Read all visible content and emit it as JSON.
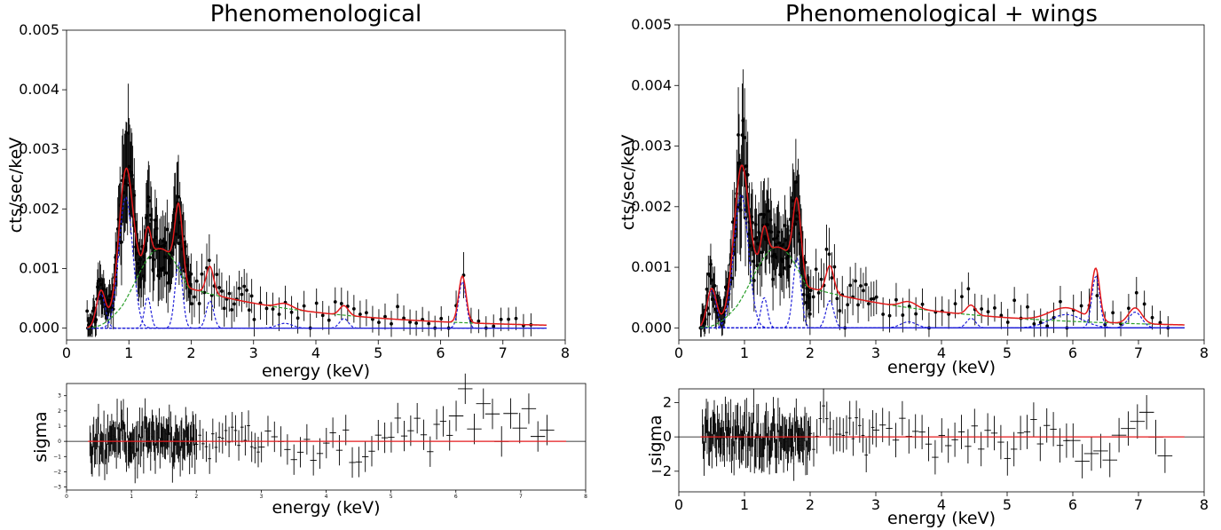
{
  "chart_data": [
    {
      "type": "line",
      "title": "Phenomenological",
      "xlabel": "energy (keV)",
      "ylabel": "cts/sec/keV",
      "xlim": [
        0,
        8
      ],
      "ylim": [
        -0.0002,
        0.005
      ],
      "xticks": [
        0,
        1,
        2,
        3,
        4,
        5,
        6,
        7,
        8
      ],
      "xtick_labels": [
        "0",
        "1",
        "2",
        "3",
        "4",
        "5",
        "6",
        "7",
        "8"
      ],
      "yticks": [
        0,
        0.001,
        0.002,
        0.003,
        0.004,
        0.005
      ],
      "ytick_labels": [
        "0.000",
        "0.001",
        "0.002",
        "0.003",
        "0.004",
        "0.005"
      ],
      "grid": false,
      "continuum": {
        "norm": 0.00145,
        "center": 1.5,
        "width": 0.55,
        "tail_amp": 0.0009,
        "tail_decay": 2.2
      },
      "lines": [
        {
          "center": 0.55,
          "amp": 0.00058,
          "sigma": 0.07
        },
        {
          "center": 0.95,
          "amp": 0.0022,
          "sigma": 0.11
        },
        {
          "center": 1.3,
          "amp": 0.00052,
          "sigma": 0.05
        },
        {
          "center": 1.8,
          "amp": 0.0011,
          "sigma": 0.06
        },
        {
          "center": 2.3,
          "amp": 0.00046,
          "sigma": 0.06
        },
        {
          "center": 3.5,
          "amp": 8e-05,
          "sigma": 0.12
        },
        {
          "center": 4.45,
          "amp": 0.00016,
          "sigma": 0.07
        },
        {
          "center": 6.35,
          "amp": 0.00078,
          "sigma": 0.06
        }
      ],
      "model_colors": {
        "total": "#e41a1c",
        "continuum": "#2ca02c",
        "lines": "#1f1fd8",
        "data": "#000000"
      }
    },
    {
      "type": "scatter",
      "title": "",
      "xlabel": "energy (keV)",
      "ylabel": "sigma",
      "xlim": [
        0,
        8
      ],
      "ylim": [
        -3.2,
        3.8
      ],
      "xticks": [
        0,
        1,
        2,
        3,
        4,
        5,
        6,
        7,
        8
      ],
      "xtick_labels": [
        "0",
        "1",
        "2",
        "3",
        "4",
        "5",
        "6",
        "7",
        "8"
      ],
      "yticks": [
        -3,
        -2,
        -1,
        0,
        1,
        2,
        3
      ],
      "ytick_labels": [
        "−3",
        "−2",
        "−1",
        "0",
        "1",
        "2",
        "3"
      ],
      "zero_line": 0,
      "trend": [
        {
          "e": 0.3,
          "sig": 0.0
        },
        {
          "e": 3.5,
          "sig": 0.0
        },
        {
          "e": 4.5,
          "sig": -0.5
        },
        {
          "e": 5.5,
          "sig": 0.8
        },
        {
          "e": 6.2,
          "sig": 2.0
        },
        {
          "e": 6.4,
          "sig": 0.0
        },
        {
          "e": 6.8,
          "sig": 1.8
        },
        {
          "e": 7.6,
          "sig": 0.5
        }
      ]
    },
    {
      "type": "line",
      "title": "Phenomenological + wings",
      "xlabel": "energy (keV)",
      "ylabel": "cts/sec/keV",
      "xlim": [
        0,
        8
      ],
      "ylim": [
        -0.0002,
        0.005
      ],
      "xticks": [
        0,
        1,
        2,
        3,
        4,
        5,
        6,
        7,
        8
      ],
      "xtick_labels": [
        "0",
        "1",
        "2",
        "3",
        "4",
        "5",
        "6",
        "7",
        "8"
      ],
      "yticks": [
        0,
        0.001,
        0.002,
        0.003,
        0.004,
        0.005
      ],
      "ytick_labels": [
        "0.000",
        "0.001",
        "0.002",
        "0.003",
        "0.004",
        "0.005"
      ],
      "grid": false,
      "continuum": {
        "norm": 0.00145,
        "center": 1.5,
        "width": 0.55,
        "tail_amp": 0.0009,
        "tail_decay": 2.2
      },
      "lines": [
        {
          "center": 0.5,
          "amp": 0.00062,
          "sigma": 0.07
        },
        {
          "center": 0.95,
          "amp": 0.0022,
          "sigma": 0.11
        },
        {
          "center": 1.3,
          "amp": 0.0005,
          "sigma": 0.05
        },
        {
          "center": 1.8,
          "amp": 0.00115,
          "sigma": 0.06
        },
        {
          "center": 2.3,
          "amp": 0.00045,
          "sigma": 0.06
        },
        {
          "center": 3.5,
          "amp": 0.0001,
          "sigma": 0.12
        },
        {
          "center": 4.45,
          "amp": 0.00016,
          "sigma": 0.07
        },
        {
          "center": 5.9,
          "amp": 0.00022,
          "sigma": 0.25
        },
        {
          "center": 6.35,
          "amp": 0.00085,
          "sigma": 0.06
        },
        {
          "center": 6.95,
          "amp": 0.00026,
          "sigma": 0.1
        }
      ],
      "model_colors": {
        "total": "#e41a1c",
        "continuum": "#2ca02c",
        "lines": "#1f1fd8",
        "data": "#000000"
      }
    },
    {
      "type": "scatter",
      "title": "",
      "xlabel": "energy (keV)",
      "ylabel": "sigma",
      "xlim": [
        0,
        8
      ],
      "ylim": [
        -3.2,
        2.8
      ],
      "xticks": [
        0,
        1,
        2,
        3,
        4,
        5,
        6,
        7,
        8
      ],
      "xtick_labels": [
        "0",
        "1",
        "2",
        "3",
        "4",
        "5",
        "6",
        "7",
        "8"
      ],
      "yticks": [
        -2,
        0,
        2
      ],
      "ytick_labels": [
        "−2",
        "0",
        "2"
      ],
      "zero_line": 0,
      "trend": [
        {
          "e": 0.3,
          "sig": 0.0
        },
        {
          "e": 7.6,
          "sig": 0.0
        }
      ]
    }
  ]
}
